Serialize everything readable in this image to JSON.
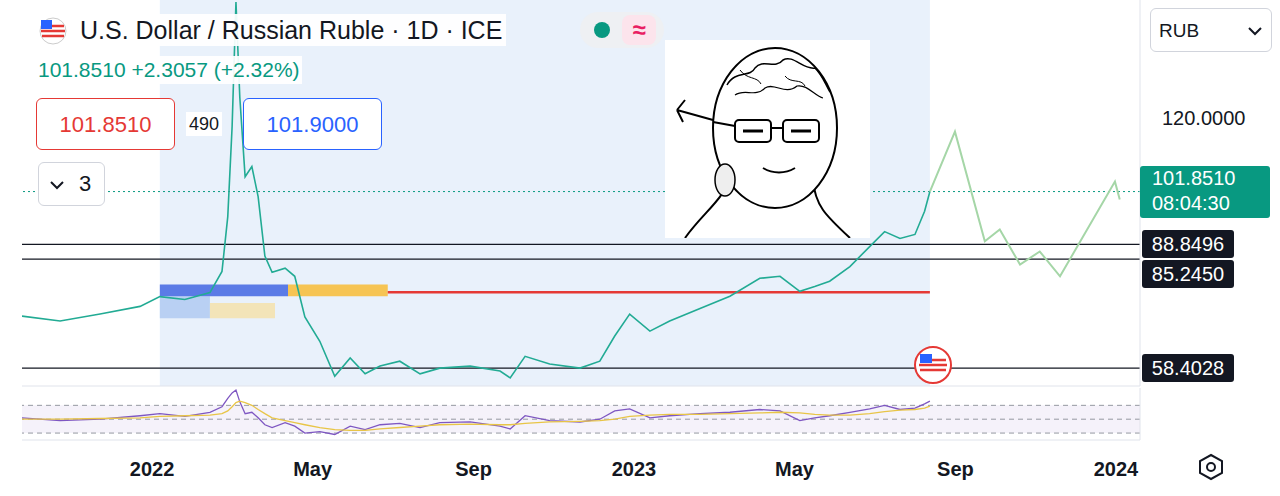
{
  "header": {
    "change": "101.8510 +2.3057 (+2.32%)",
    "bid": "101.8510",
    "spread": "490",
    "ask": "101.9000",
    "indicators_count": "3",
    "status": "≈",
    "currency": "RUB"
  },
  "chart_data": [
    {
      "type": "line",
      "title": "U.S. Dollar / Russian Ruble · 1D · ICE",
      "x": [
        2021.73,
        2021.809,
        2021.892,
        2021.975,
        2022.016,
        2022.068,
        2022.12,
        2022.145,
        2022.157,
        2022.166,
        2022.174,
        2022.182,
        2022.193,
        2022.207,
        2022.22,
        2022.234,
        2022.249,
        2022.276,
        2022.296,
        2022.317,
        2022.348,
        2022.379,
        2022.411,
        2022.442,
        2022.473,
        2022.514,
        2022.556,
        2022.597,
        2022.66,
        2022.722,
        2022.743,
        2022.774,
        2022.825,
        2022.888,
        2022.929,
        2022.96,
        2022.991,
        2023.033,
        2023.074,
        2023.137,
        2023.199,
        2023.261,
        2023.303,
        2023.344,
        2023.375,
        2023.406,
        2023.448,
        2023.489,
        2023.52,
        2023.552,
        2023.583,
        2023.603,
        2023.614
      ],
      "values": [
        71.2,
        70,
        71.7,
        73.6,
        76,
        75.3,
        77,
        82.2,
        95.7,
        117.8,
        148.5,
        125,
        105.5,
        108,
        100.6,
        86,
        82,
        83,
        81,
        71,
        65,
        56.4,
        60.9,
        57,
        58.9,
        60.1,
        57,
        58.4,
        58.9,
        57.7,
        56,
        61.3,
        59.4,
        58.4,
        60.1,
        66.3,
        71.7,
        67.5,
        70,
        73.1,
        76.1,
        80.5,
        81,
        77.3,
        78.5,
        79.8,
        83.4,
        88.3,
        92,
        90.3,
        91.3,
        97,
        101.851
      ],
      "color": "#22ab94",
      "projection": {
        "x": [
          2023.614,
          2023.666,
          2023.728,
          2023.759,
          2023.801,
          2023.842,
          2023.884,
          2023.998,
          2024.008
        ],
        "values": [
          101.851,
          116.6,
          89.6,
          92.5,
          83.9,
          87.1,
          81,
          104.3,
          99.9
        ],
        "color": "#a5d6a7"
      },
      "xlim": [
        2021.73,
        2024.05
      ],
      "ylim": [
        54,
        149
      ],
      "yticks": [
        {
          "value": 120,
          "label": "120.0000"
        }
      ],
      "tick_labels": "y",
      "last_price": {
        "value": 101.851,
        "label": "101.8510",
        "countdown": "08:04:30",
        "color": "#089981"
      },
      "levels": [
        {
          "value": 88.8496,
          "label": "88.8496"
        },
        {
          "value": 85.245,
          "label": "85.2450"
        },
        {
          "value": 58.4028,
          "label": "58.4028"
        }
      ],
      "support_line": {
        "x": [
          2022.489,
          2023.614
        ],
        "value": 77.05,
        "color": "#e53935"
      },
      "zones": [
        {
          "x": [
            2022.016,
            2023.614
          ],
          "y": [
            54,
            149
          ],
          "color": "#e9f1fb"
        },
        {
          "x": [
            2022.016,
            2022.12
          ],
          "y": [
            70.7,
            76.1
          ],
          "color": "#b9d0f3"
        },
        {
          "x": [
            2022.12,
            2022.255
          ],
          "y": [
            70.7,
            74.4
          ],
          "color": "#f3e4b8"
        },
        {
          "x": [
            2022.016,
            2022.282
          ],
          "y": [
            76.1,
            79
          ],
          "color": "#5b7be6"
        },
        {
          "x": [
            2022.282,
            2022.489
          ],
          "y": [
            76.1,
            79
          ],
          "color": "#f6c453"
        }
      ]
    },
    {
      "type": "line",
      "x": [
        2021.73,
        2021.809,
        2021.892,
        2021.975,
        2022.016,
        2022.068,
        2022.12,
        2022.145,
        2022.157,
        2022.166,
        2022.174,
        2022.182,
        2022.193,
        2022.207,
        2022.22,
        2022.234,
        2022.249,
        2022.276,
        2022.296,
        2022.317,
        2022.348,
        2022.379,
        2022.411,
        2022.442,
        2022.473,
        2022.514,
        2022.556,
        2022.597,
        2022.66,
        2022.722,
        2022.743,
        2022.774,
        2022.825,
        2022.888,
        2022.929,
        2022.96,
        2022.991,
        2023.033,
        2023.074,
        2023.137,
        2023.199,
        2023.261,
        2023.303,
        2023.344,
        2023.375,
        2023.406,
        2023.448,
        2023.489,
        2023.52,
        2023.552,
        2023.583,
        2023.603,
        2023.614
      ],
      "series": [
        {
          "color": "#7e57c2",
          "values": [
            52,
            48,
            50,
            55,
            58,
            54,
            60,
            68,
            80,
            88,
            92,
            75,
            58,
            60,
            52,
            42,
            38,
            45,
            40,
            30,
            32,
            28,
            40,
            35,
            42,
            44,
            38,
            45,
            46,
            40,
            36,
            55,
            48,
            46,
            50,
            62,
            65,
            52,
            55,
            58,
            60,
            64,
            62,
            48,
            52,
            55,
            60,
            65,
            70,
            64,
            66,
            72,
            76
          ]
        },
        {
          "color": "#e8c547",
          "values": [
            50,
            50,
            51,
            52,
            54,
            55,
            56,
            58,
            62,
            68,
            74,
            76,
            74,
            70,
            64,
            58,
            52,
            48,
            45,
            42,
            38,
            35,
            34,
            34,
            36,
            38,
            40,
            42,
            43,
            42,
            42,
            44,
            46,
            47,
            48,
            50,
            54,
            56,
            57,
            57,
            58,
            59,
            60,
            59,
            57,
            56,
            56,
            58,
            61,
            63,
            64,
            66,
            69
          ]
        }
      ],
      "xlim": [
        2021.73,
        2024.05
      ],
      "xticks": [
        2022,
        {
          "value": 2022.333,
          "label": "May"
        },
        {
          "value": 2022.667,
          "label": "Sep"
        },
        2023,
        {
          "value": 2023.333,
          "label": "May"
        },
        {
          "value": 2023.667,
          "label": "Sep"
        },
        2024
      ],
      "ylim": [
        20,
        95
      ],
      "yticks": [
        30,
        50,
        70
      ],
      "grid": true,
      "tick_labels": "x"
    }
  ]
}
